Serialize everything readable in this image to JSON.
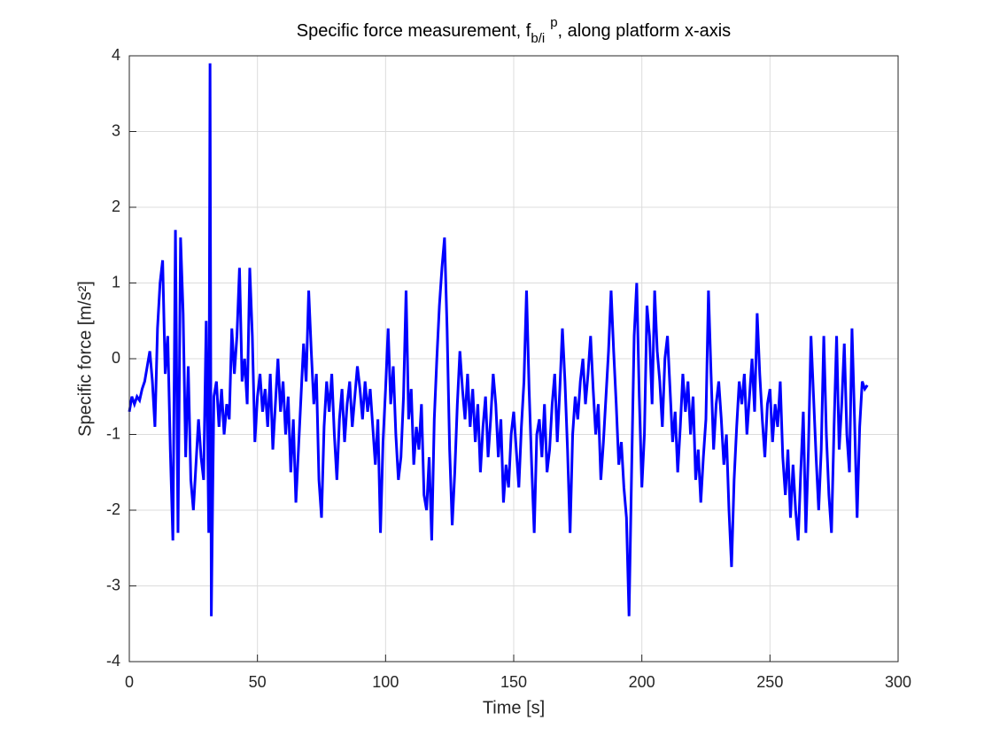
{
  "chart_data": {
    "type": "line",
    "title": [
      "Specific force measurement, f",
      "b/i",
      "p",
      ", along platform x-axis"
    ],
    "xlabel": "Time [s]",
    "ylabel": "Specific force [m/s²]",
    "xlim": [
      0,
      300
    ],
    "ylim": [
      -4,
      4
    ],
    "xticks": [
      0,
      50,
      100,
      150,
      200,
      250,
      300
    ],
    "yticks": [
      -4,
      -3,
      -2,
      -1,
      0,
      1,
      2,
      3,
      4
    ],
    "grid": true,
    "x": [
      0,
      1,
      2,
      3,
      4,
      5,
      6,
      7,
      8,
      9,
      10,
      11,
      12,
      13,
      14,
      15,
      16,
      17,
      18,
      19,
      20,
      21,
      22,
      23,
      24,
      25,
      26,
      27,
      28,
      29,
      30,
      31,
      31.5,
      32,
      32.5,
      33,
      34,
      35,
      36,
      37,
      38,
      39,
      40,
      41,
      42,
      43,
      44,
      45,
      46,
      47,
      48,
      49,
      50,
      51,
      52,
      53,
      54,
      55,
      56,
      57,
      58,
      59,
      60,
      61,
      62,
      63,
      64,
      65,
      66,
      67,
      68,
      69,
      70,
      71,
      72,
      73,
      74,
      75,
      76,
      77,
      78,
      79,
      80,
      81,
      82,
      83,
      84,
      85,
      86,
      87,
      88,
      89,
      90,
      91,
      92,
      93,
      94,
      95,
      96,
      97,
      98,
      99,
      100,
      101,
      102,
      103,
      104,
      105,
      106,
      107,
      108,
      109,
      110,
      111,
      112,
      113,
      114,
      115,
      116,
      117,
      118,
      119,
      120,
      121,
      122,
      123,
      124,
      125,
      126,
      127,
      128,
      129,
      130,
      131,
      132,
      133,
      134,
      135,
      136,
      137,
      138,
      139,
      140,
      141,
      142,
      143,
      144,
      145,
      146,
      147,
      148,
      149,
      150,
      151,
      152,
      153,
      154,
      155,
      156,
      157,
      158,
      159,
      160,
      161,
      162,
      163,
      164,
      165,
      166,
      167,
      168,
      169,
      170,
      171,
      172,
      173,
      174,
      175,
      176,
      177,
      178,
      179,
      180,
      181,
      182,
      183,
      184,
      185,
      186,
      187,
      188,
      189,
      190,
      191,
      192,
      193,
      194,
      195,
      196,
      197,
      198,
      199,
      200,
      201,
      202,
      203,
      204,
      205,
      206,
      207,
      208,
      209,
      210,
      211,
      212,
      213,
      214,
      215,
      216,
      217,
      218,
      219,
      220,
      221,
      222,
      223,
      224,
      225,
      226,
      227,
      228,
      229,
      230,
      231,
      232,
      233,
      234,
      235,
      236,
      237,
      238,
      239,
      240,
      241,
      242,
      243,
      244,
      245,
      246,
      247,
      248,
      249,
      250,
      251,
      252,
      253,
      254,
      255,
      256,
      257,
      258,
      259,
      260,
      261,
      262,
      263,
      264,
      265,
      266,
      267,
      268,
      269,
      270,
      271,
      272,
      273,
      274,
      275,
      276,
      277,
      278,
      279,
      280,
      281,
      282,
      283,
      284,
      285,
      286,
      287,
      288
    ],
    "series": [
      {
        "color": "#0000ff",
        "values": [
          -0.7,
          -0.5,
          -0.6,
          -0.5,
          -0.55,
          -0.4,
          -0.3,
          -0.1,
          0.1,
          -0.3,
          -0.9,
          0.4,
          1.0,
          1.3,
          -0.2,
          0.3,
          -1.2,
          -2.4,
          1.7,
          -2.3,
          1.6,
          0.6,
          -1.3,
          -0.1,
          -1.6,
          -2.0,
          -1.4,
          -0.8,
          -1.3,
          -1.6,
          0.5,
          -2.3,
          3.9,
          -3.4,
          -1.9,
          -0.5,
          -0.3,
          -0.9,
          -0.4,
          -1.0,
          -0.6,
          -0.8,
          0.4,
          -0.2,
          0.3,
          1.2,
          -0.3,
          0.0,
          -0.6,
          1.2,
          0.3,
          -1.1,
          -0.5,
          -0.2,
          -0.7,
          -0.4,
          -0.9,
          -0.2,
          -1.2,
          -0.6,
          0.0,
          -0.7,
          -0.3,
          -1.0,
          -0.5,
          -1.5,
          -0.8,
          -1.9,
          -1.2,
          -0.5,
          0.2,
          -0.3,
          0.9,
          0.1,
          -0.6,
          -0.2,
          -1.6,
          -2.1,
          -0.9,
          -0.3,
          -0.7,
          -0.2,
          -1.0,
          -1.6,
          -0.8,
          -0.4,
          -1.1,
          -0.6,
          -0.3,
          -0.9,
          -0.5,
          -0.1,
          -0.4,
          -0.8,
          -0.3,
          -0.7,
          -0.4,
          -0.9,
          -1.4,
          -0.8,
          -2.3,
          -1.1,
          -0.4,
          0.4,
          -0.6,
          -0.1,
          -1.0,
          -1.6,
          -1.3,
          -0.5,
          0.9,
          -0.8,
          -0.4,
          -1.4,
          -0.9,
          -1.2,
          -0.6,
          -1.8,
          -2.0,
          -1.3,
          -2.4,
          -0.8,
          0.0,
          0.7,
          1.2,
          1.6,
          0.4,
          -1.2,
          -2.2,
          -1.5,
          -0.6,
          0.1,
          -0.4,
          -0.8,
          -0.2,
          -0.9,
          -0.4,
          -1.1,
          -0.6,
          -1.5,
          -0.9,
          -0.5,
          -1.3,
          -0.8,
          -0.2,
          -0.6,
          -1.3,
          -0.8,
          -1.9,
          -1.4,
          -1.7,
          -1.0,
          -0.7,
          -1.2,
          -1.7,
          -0.9,
          -0.3,
          0.9,
          -0.4,
          -1.4,
          -2.3,
          -1.0,
          -0.8,
          -1.3,
          -0.6,
          -1.5,
          -1.2,
          -0.6,
          -0.2,
          -1.1,
          -0.4,
          0.4,
          -0.3,
          -1.2,
          -2.3,
          -1.0,
          -0.5,
          -0.8,
          -0.3,
          0.0,
          -0.6,
          -0.2,
          0.3,
          -0.4,
          -1.0,
          -0.6,
          -1.6,
          -1.1,
          -0.5,
          0.1,
          0.9,
          0.1,
          -0.6,
          -1.4,
          -1.1,
          -1.7,
          -2.1,
          -3.4,
          -1.5,
          0.3,
          1.0,
          -0.5,
          -1.7,
          -1.0,
          0.7,
          0.3,
          -0.6,
          0.9,
          0.1,
          -0.3,
          -0.9,
          0.0,
          0.3,
          -0.4,
          -1.1,
          -0.7,
          -1.5,
          -0.9,
          -0.2,
          -0.7,
          -0.3,
          -1.0,
          -0.5,
          -1.6,
          -1.2,
          -1.9,
          -1.3,
          -0.8,
          0.9,
          -0.2,
          -1.2,
          -0.6,
          -0.3,
          -0.8,
          -1.4,
          -1.0,
          -2.0,
          -2.75,
          -1.6,
          -0.9,
          -0.3,
          -0.6,
          -0.2,
          -1.0,
          -0.5,
          0.0,
          -0.7,
          0.6,
          -0.2,
          -0.8,
          -1.3,
          -0.6,
          -0.4,
          -1.1,
          -0.6,
          -0.9,
          -0.3,
          -1.3,
          -1.8,
          -1.2,
          -2.1,
          -1.4,
          -2.0,
          -2.4,
          -1.5,
          -0.7,
          -2.3,
          -1.2,
          0.3,
          -0.5,
          -1.3,
          -2.0,
          -1.2,
          0.3,
          -1.0,
          -1.8,
          -2.3,
          -0.9,
          0.3,
          -1.2,
          -0.6,
          0.2,
          -1.0,
          -1.5,
          0.4,
          -0.8,
          -2.1,
          -0.9,
          -0.3,
          -0.4,
          -0.35
        ]
      }
    ]
  }
}
